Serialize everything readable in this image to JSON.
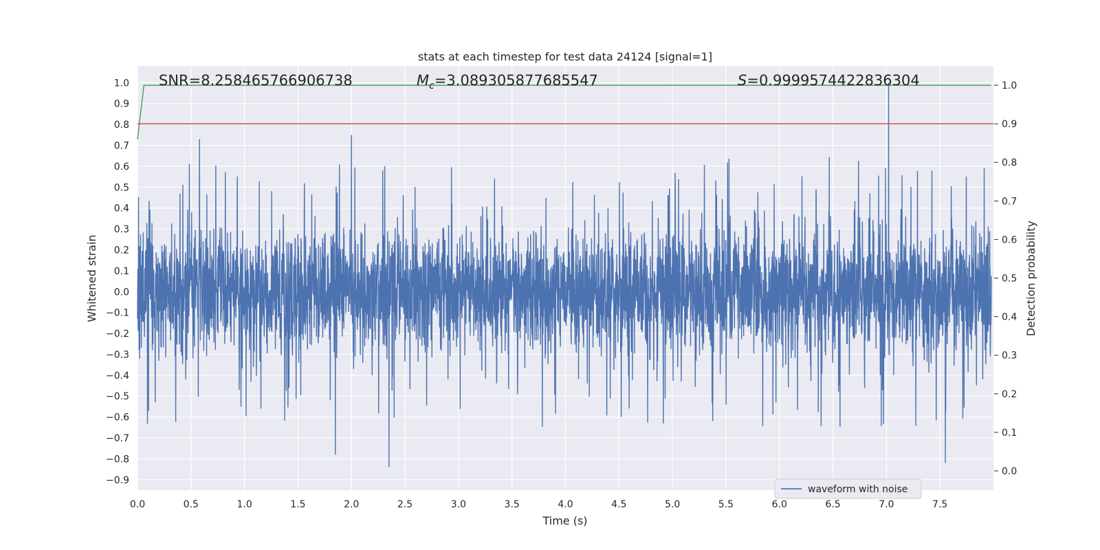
{
  "chart_data": {
    "type": "line",
    "title": "stats at each timestep for test data 24124 [signal=1]",
    "xlabel": "Time (s)",
    "ylabel": "Whitened strain",
    "y2label": "Detection probability",
    "xlim": [
      0.0,
      8.0
    ],
    "ylim": [
      -0.95,
      1.08
    ],
    "y2lim": [
      -0.05,
      1.05
    ],
    "xticks": [
      "0.0",
      "0.5",
      "1.0",
      "1.5",
      "2.0",
      "2.5",
      "3.0",
      "3.5",
      "4.0",
      "4.5",
      "5.0",
      "5.5",
      "6.0",
      "6.5",
      "7.0",
      "7.5"
    ],
    "yticks": [
      "−0.9",
      "−0.8",
      "−0.7",
      "−0.6",
      "−0.5",
      "−0.4",
      "−0.3",
      "−0.2",
      "−0.1",
      "0.0",
      "0.1",
      "0.2",
      "0.3",
      "0.4",
      "0.5",
      "0.6",
      "0.7",
      "0.8",
      "0.9",
      "1.0"
    ],
    "y2ticks": [
      "0.0",
      "0.1",
      "0.2",
      "0.3",
      "0.4",
      "0.5",
      "0.6",
      "0.7",
      "0.8",
      "0.9",
      "1.0"
    ],
    "annotations": {
      "snr": "SNR=8.258465766906738",
      "mc_symbol": "M",
      "mc_sub": "c",
      "mc_value": "=3.089305877685547",
      "s_symbol": "S",
      "s_value": "=0.9999574422836304"
    },
    "grid": true,
    "legend_placement": "lower-right",
    "series": [
      {
        "name": "waveform with noise",
        "axis": "left",
        "color": "#4c72b0",
        "style": "noise",
        "x_range": [
          0.0,
          7.98
        ],
        "peaks": [
          {
            "x": 0.58,
            "y": 0.73
          },
          {
            "x": 2.0,
            "y": 0.75
          },
          {
            "x": 7.02,
            "y": 1.0
          },
          {
            "x": 2.35,
            "y": -0.84
          },
          {
            "x": 7.55,
            "y": -0.82
          },
          {
            "x": 1.85,
            "y": -0.78
          }
        ]
      },
      {
        "axis": "right",
        "color": "#55a868",
        "style": "line",
        "x": [
          0.0,
          0.06,
          7.98
        ],
        "values": [
          0.86,
          1.0,
          1.0
        ]
      },
      {
        "axis": "right",
        "color": "#c44e52",
        "style": "hline",
        "values": [
          0.9
        ]
      }
    ]
  }
}
